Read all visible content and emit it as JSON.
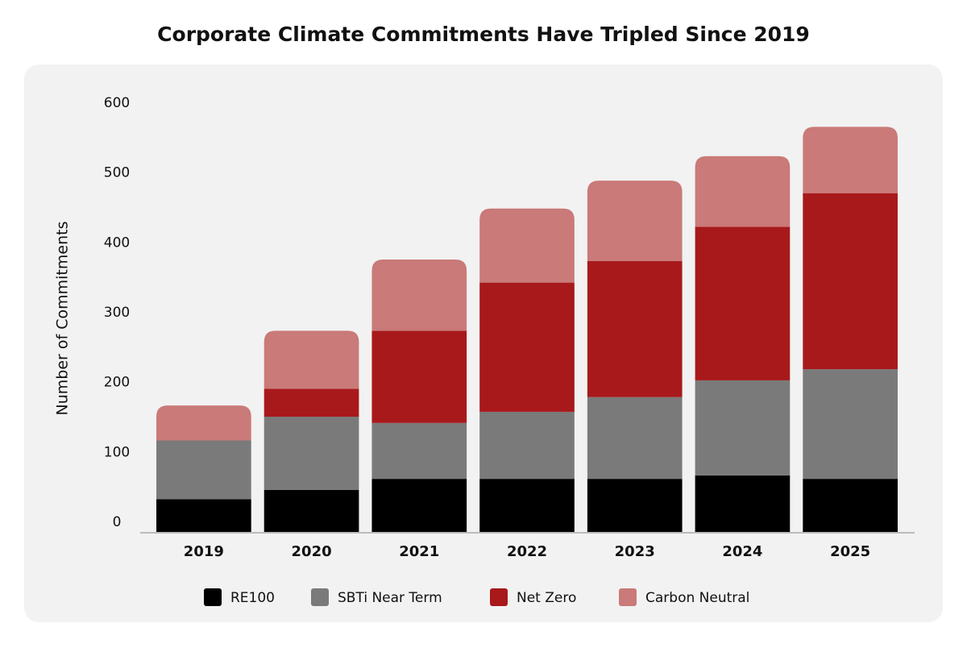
{
  "chart_data": {
    "type": "stacked_bar",
    "title": "Corporate Climate Commitments Have Tripled Since 2019",
    "y_label": "Number of Commitments",
    "categories": [
      "2019",
      "2020",
      "2021",
      "2022",
      "2023",
      "2024",
      "2025"
    ],
    "series": [
      {
        "name": "RE100",
        "color": "#000000",
        "values": [
          47,
          60,
          76,
          76,
          76,
          81,
          76
        ]
      },
      {
        "name": "SBTi Near Term",
        "color": "#7a7a7a",
        "values": [
          84,
          105,
          80,
          96,
          117,
          136,
          157
        ]
      },
      {
        "name": "Net Zero",
        "color": "#a8191b",
        "values": [
          0,
          40,
          132,
          185,
          195,
          220,
          252
        ]
      },
      {
        "name": "Carbon Neutral",
        "color": "#c97a79",
        "values": [
          50,
          83,
          102,
          106,
          115,
          101,
          95
        ]
      }
    ],
    "ylim": [
      0,
      600
    ],
    "yticks": [
      0,
      100,
      200,
      300,
      400,
      500,
      600
    ]
  }
}
